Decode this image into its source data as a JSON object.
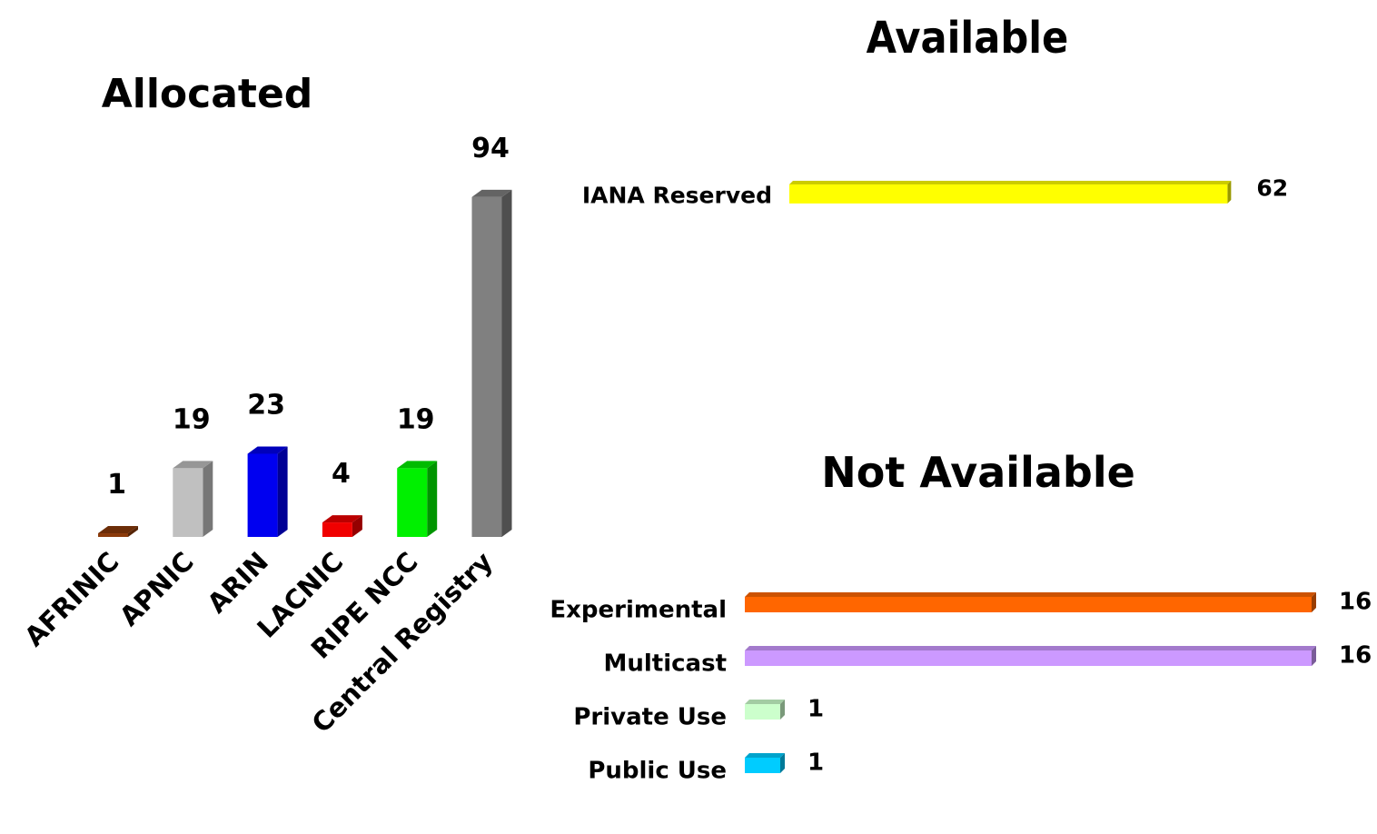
{
  "chart_data": [
    {
      "type": "bar",
      "orientation": "vertical",
      "title": "Allocated",
      "categories": [
        "AFRINIC",
        "APNIC",
        "ARIN",
        "LACNIC",
        "RIPE NCC",
        "Central Registry"
      ],
      "values": [
        1,
        19,
        23,
        4,
        19,
        94
      ],
      "colors": [
        "#8B3A0A",
        "#C0C0C0",
        "#0000F0",
        "#F00000",
        "#00F000",
        "#808080"
      ],
      "grid": false,
      "legend": "none",
      "style": "3d"
    },
    {
      "type": "bar",
      "orientation": "horizontal",
      "title": "Available",
      "categories": [
        "IANA Reserved"
      ],
      "values": [
        62
      ],
      "colors": [
        "#FFFF00"
      ],
      "grid": false,
      "legend": "none",
      "style": "3d"
    },
    {
      "type": "bar",
      "orientation": "horizontal",
      "title": "Not Available",
      "categories": [
        "Experimental",
        "Multicast",
        "Private Use",
        "Public Use"
      ],
      "values": [
        16,
        16,
        1,
        1
      ],
      "colors": [
        "#FF6600",
        "#CC99FF",
        "#CCFFCC",
        "#00CCFF"
      ],
      "grid": false,
      "legend": "none",
      "style": "3d"
    }
  ]
}
